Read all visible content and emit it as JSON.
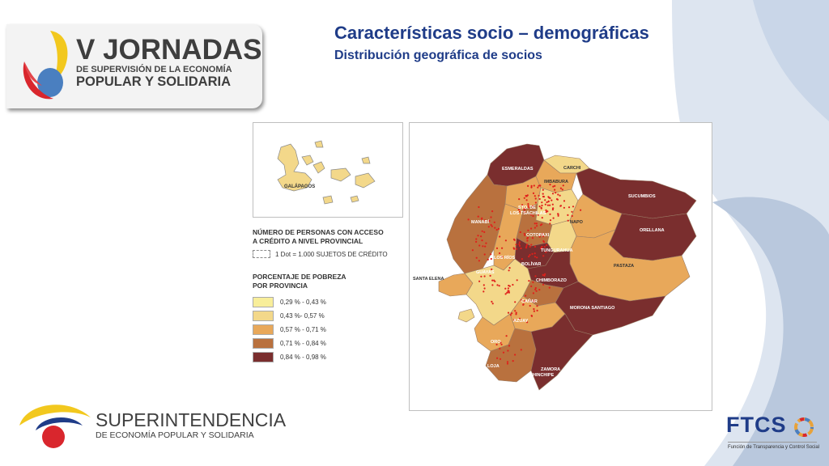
{
  "logo": {
    "line1": "V JORNADAS",
    "line2": "DE SUPERVISIÓN DE LA ECONOMÍA",
    "line3": "POPULAR Y SOLIDARIA"
  },
  "slide": {
    "title": "Características socio – demográficas",
    "subtitle": "Distribución geográfica de socios"
  },
  "inset": {
    "label": "GALÁPAGOS"
  },
  "legend": {
    "dot_heading_line1": "NÚMERO DE PERSONAS CON ACCESO",
    "dot_heading_line2": "A CRÉDITO A NIVEL PROVINCIAL",
    "dot_label": "1 Dot = 1.000 SUJETOS DE CRÉDITO",
    "poverty_heading_line1": "PORCENTAJE DE POBREZA",
    "poverty_heading_line2": "POR PROVINCIA",
    "classes": [
      {
        "label": "0,29 % - 0,43 %",
        "color": "#f8ee9a"
      },
      {
        "label": "0,43 %- 0,57 %",
        "color": "#f3d88a"
      },
      {
        "label": "0,57 % - 0,71 %",
        "color": "#e8a85a"
      },
      {
        "label": "0,71 % - 0,84 %",
        "color": "#b9713e"
      },
      {
        "label": "0,84 % - 0,98 %",
        "color": "#7a2e2e"
      }
    ]
  },
  "map": {
    "provinces": {
      "esmeraldas": "ESMERALDAS",
      "carchi": "CARCHI",
      "imbabura": "IMBABURA",
      "sucumbios": "SUCUMBIOS",
      "santo_domingo_1": "STO. DE",
      "santo_domingo_2": "LOS TSÁCHILAS",
      "manabi": "MANABÍ",
      "napo": "NAPO",
      "orellana": "ORELLANA",
      "cotopaxi": "COTOPAXI",
      "tungurahua": "TUNGURAHUA",
      "los_rios": "LOS RÍOS",
      "bolivar": "BOLÍVAR",
      "pastaza": "PASTAZA",
      "santa_elena": "SANTA ELENA",
      "guayas": "GUAYAS",
      "chimborazo": "CHIMBORAZO",
      "canar": "CAÑAR",
      "morona_santiago": "MORONA SANTIAGO",
      "azuay": "AZUAY",
      "el_oro": "ORO",
      "loja": "LOJA",
      "zamora_1": "ZAMORA",
      "zamora_2": "CHINCHIPE"
    },
    "dot_color": "#e0201b"
  },
  "footer": {
    "sup_line1": "SUPERINTENDENCIA",
    "sup_line2": "DE ECONOMÍA POPULAR Y SOLIDARIA",
    "ftcs_title": "FTCS",
    "ftcs_sub": "Función de Transparencia y Control Social"
  },
  "colors": {
    "title_blue": "#1f3c88",
    "bg_light_blue": "#dbe4f0",
    "bg_mid_blue": "#b8c7de"
  }
}
